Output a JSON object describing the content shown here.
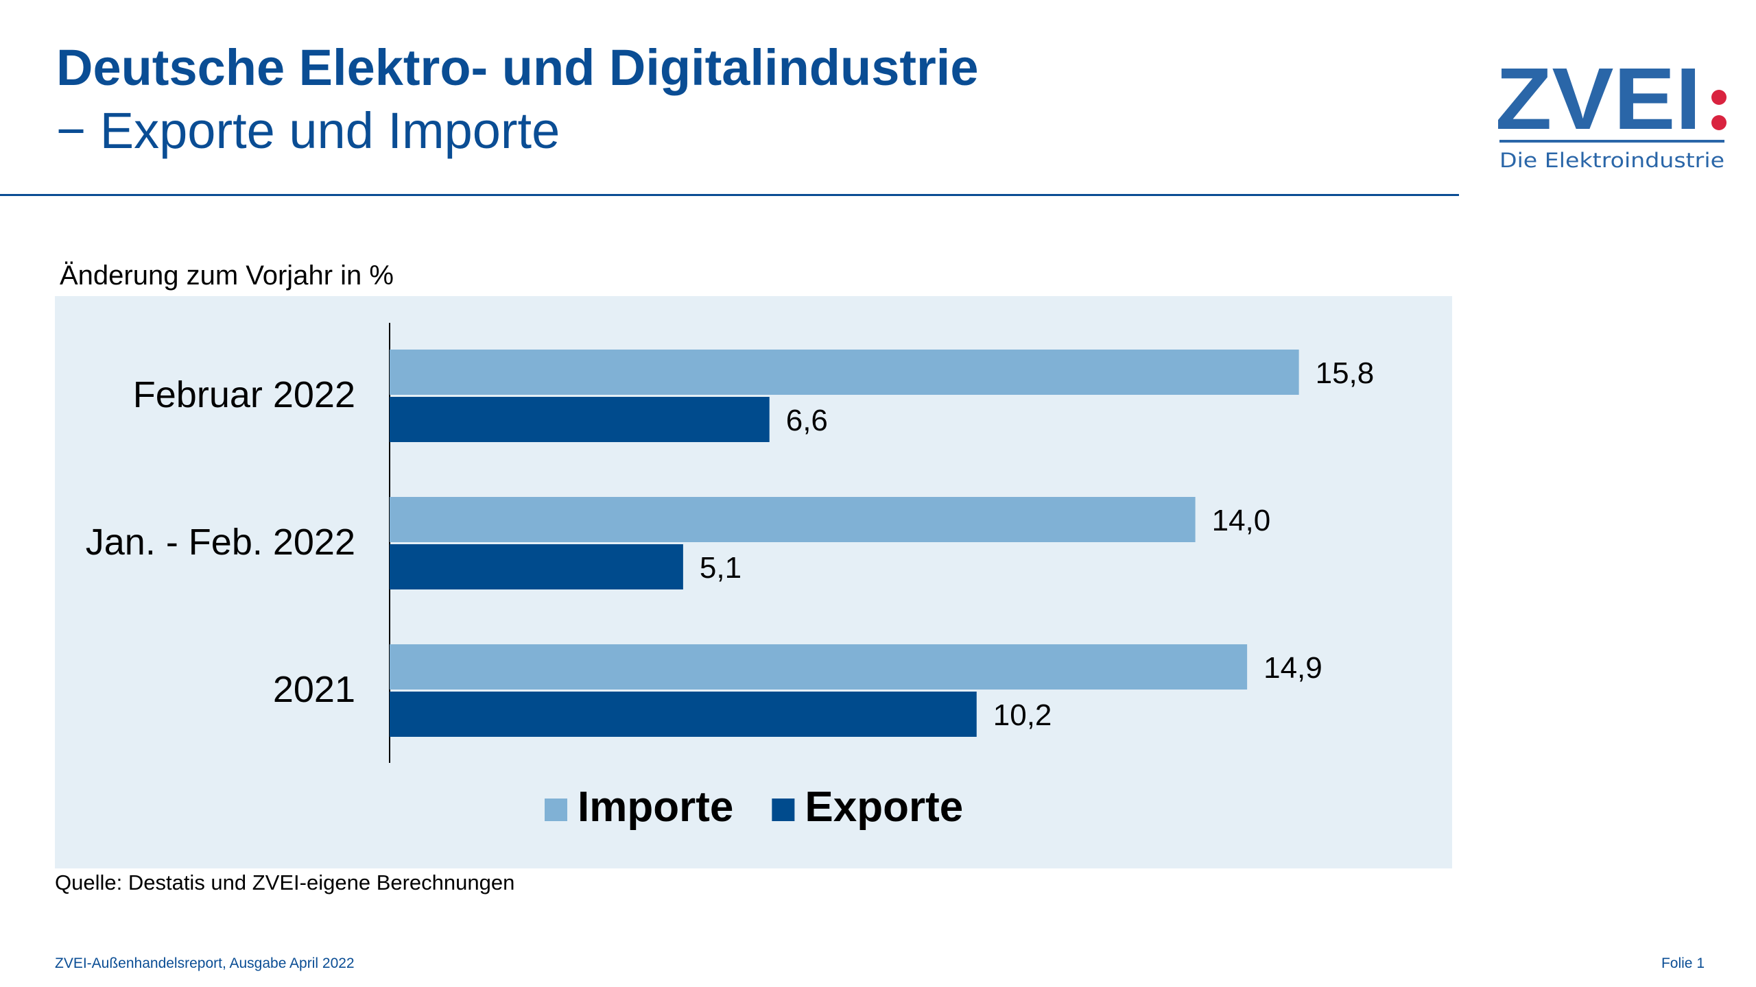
{
  "header": {
    "title": "Deutsche Elektro- und Digitalindustrie",
    "subtitle": "− Exporte und Importe"
  },
  "logo": {
    "text": "ZVEI",
    "tagline": "Die Elektroindustrie",
    "brand_color": "#2a66a8",
    "dot_color": "#d9233f"
  },
  "chart_data": {
    "type": "bar",
    "orientation": "horizontal",
    "title": "Änderung zum Vorjahr in %",
    "categories": [
      "Februar 2022",
      "Jan. - Feb. 2022",
      "2021"
    ],
    "series": [
      {
        "name": "Importe",
        "color": "#80b1d5",
        "values": [
          15.8,
          14.0,
          14.9
        ],
        "labels": [
          "15,8",
          "14,0",
          "14,9"
        ]
      },
      {
        "name": "Exporte",
        "color": "#004b8d",
        "values": [
          6.6,
          5.1,
          10.2
        ],
        "labels": [
          "6,6",
          "5,1",
          "10,2"
        ]
      }
    ],
    "xlim": [
      0,
      18
    ],
    "grid": false,
    "legend": "bottom-center",
    "background": "#e5eff6"
  },
  "source": "Quelle: Destatis und ZVEI-eigene Berechnungen",
  "footer": {
    "left": "ZVEI-Außenhandelsreport, Ausgabe April 2022",
    "right": "Folie 1"
  }
}
